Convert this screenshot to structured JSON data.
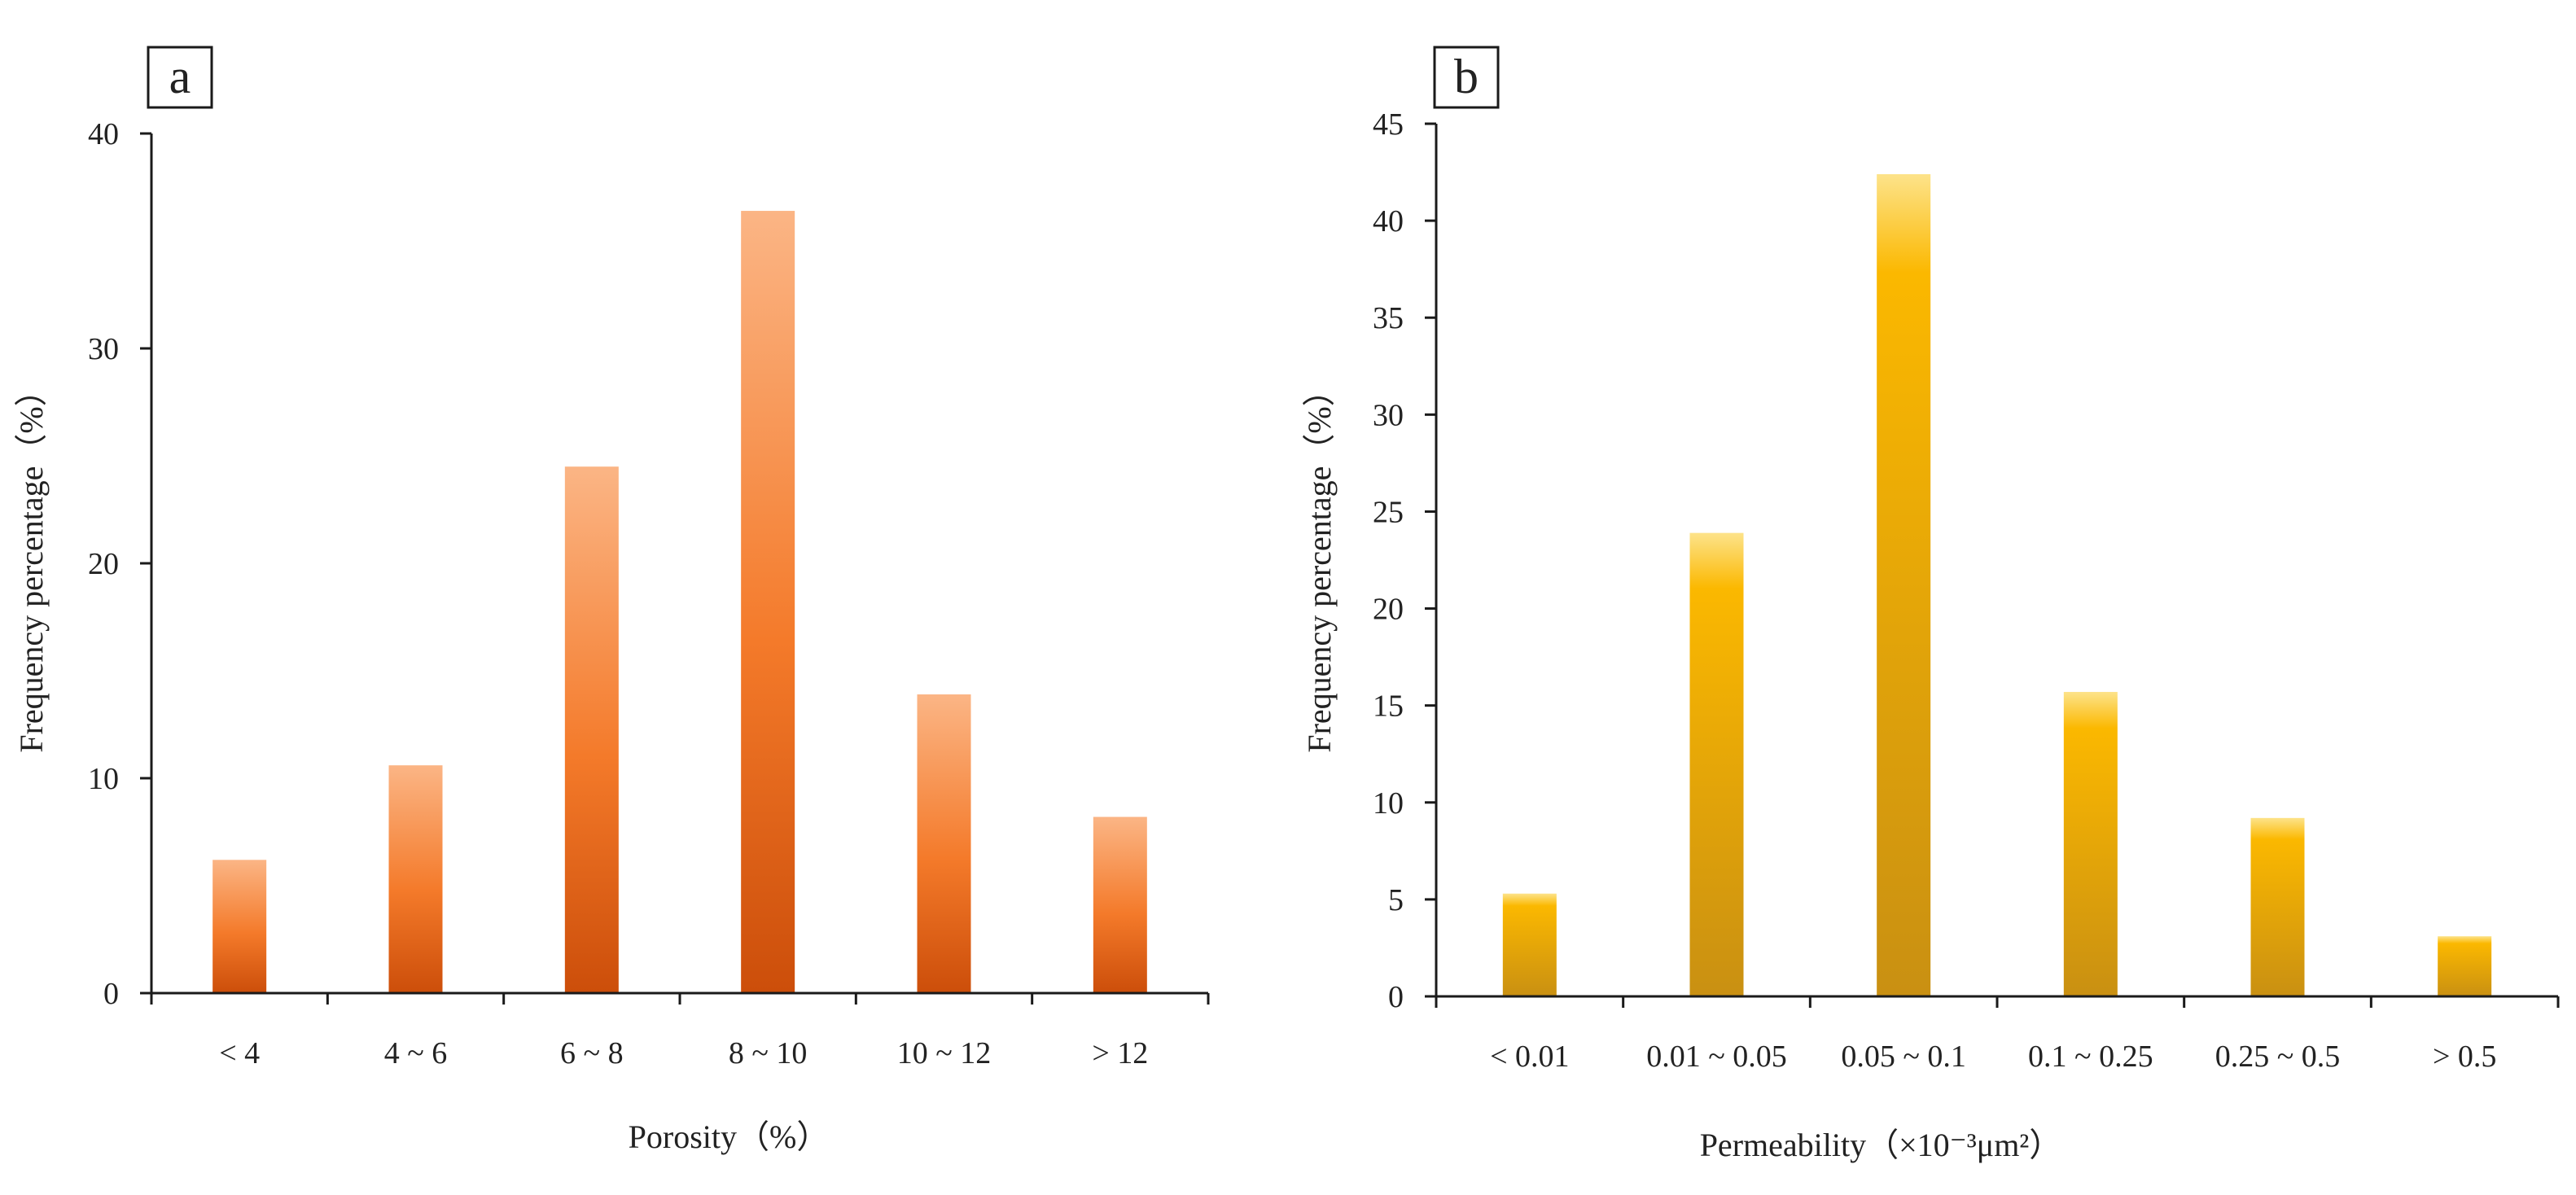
{
  "colors": {
    "porosity_top": "#fbb585",
    "porosity_mid": "#f47a2a",
    "porosity_bottom": "#cc4e0a",
    "permeability_top": "#fde38a",
    "permeability_mid": "#fbb800",
    "permeability_bottom": "#c99012",
    "axis": "#1a1a1a"
  },
  "chart_data": [
    {
      "type": "bar",
      "panel_label": "a",
      "title": "",
      "categories": [
        "< 4",
        "4 ~ 6",
        "6 ~ 8",
        "8 ~ 10",
        "10 ~ 12",
        "> 12"
      ],
      "values": [
        6.2,
        10.6,
        24.5,
        36.4,
        13.9,
        8.2
      ],
      "xlabel": "Porosity（%）",
      "ylabel": "Frequency percentage（%）",
      "ylim": [
        0,
        40
      ],
      "yticks": [
        0,
        10,
        20,
        30,
        40
      ],
      "grid": false,
      "legend": "none"
    },
    {
      "type": "bar",
      "panel_label": "b",
      "title": "",
      "categories": [
        "< 0.01",
        "0.01 ~ 0.05",
        "0.05 ~ 0.1",
        "0.1 ~ 0.25",
        "0.25 ~ 0.5",
        "> 0.5"
      ],
      "values": [
        5.3,
        23.9,
        42.4,
        15.7,
        9.2,
        3.1
      ],
      "xlabel": "Permeability（×10⁻³μm²）",
      "ylabel": "Frequency percentage（%）",
      "ylim": [
        0,
        45
      ],
      "yticks": [
        0,
        5,
        10,
        15,
        20,
        25,
        30,
        35,
        40,
        45
      ],
      "grid": false,
      "legend": "none"
    }
  ]
}
